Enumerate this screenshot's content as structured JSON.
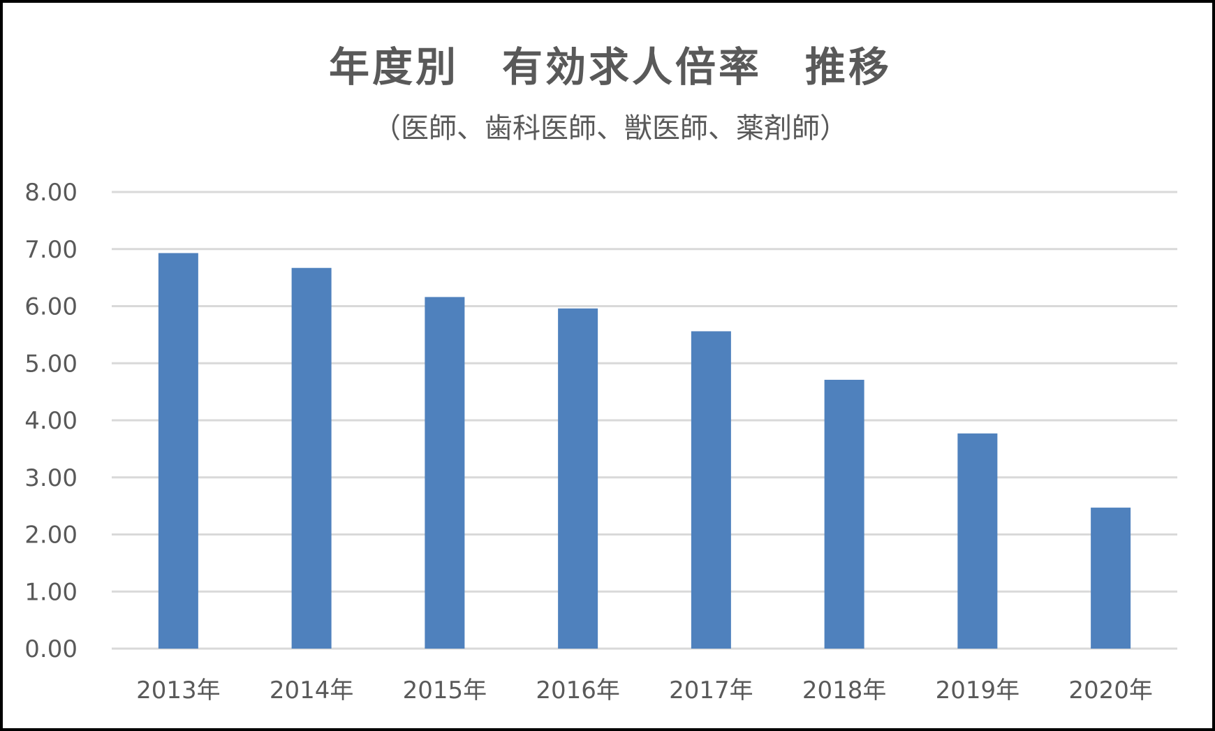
{
  "chart_data": {
    "type": "bar",
    "title": "年度別　有効求人倍率　推移",
    "subtitle": "（医師、歯科医師、獣医師、薬剤師）",
    "xlabel": "",
    "ylabel": "",
    "categories": [
      "2013年",
      "2014年",
      "2015年",
      "2016年",
      "2017年",
      "2018年",
      "2019年",
      "2020年"
    ],
    "values": [
      6.93,
      6.67,
      6.16,
      5.96,
      5.56,
      4.71,
      3.77,
      2.47
    ],
    "ylim": [
      0,
      8
    ],
    "yticks": [
      0,
      1,
      2,
      3,
      4,
      5,
      6,
      7,
      8
    ],
    "ytick_labels": [
      "0.00",
      "1.00",
      "2.00",
      "3.00",
      "4.00",
      "5.00",
      "6.00",
      "7.00",
      "8.00"
    ],
    "grid": true,
    "legend": "none",
    "bar_color": "#4F81BD",
    "grid_color": "#D9D9D9",
    "text_color": "#595959"
  }
}
